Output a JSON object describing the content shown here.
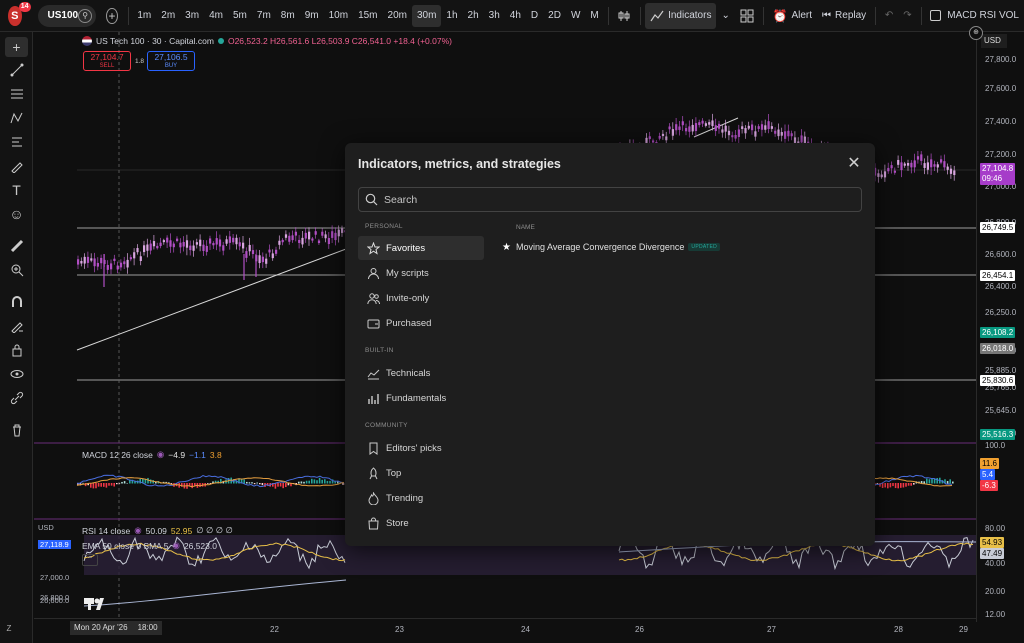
{
  "topbar": {
    "avatar_letter": "S",
    "notification_count": "14",
    "symbol": "US100",
    "intervals": [
      "1m",
      "2m",
      "3m",
      "4m",
      "5m",
      "7m",
      "8m",
      "9m",
      "10m",
      "15m",
      "20m",
      "30m",
      "1h",
      "2h",
      "3h",
      "4h",
      "D",
      "2D",
      "W",
      "M"
    ],
    "active_interval": "30m",
    "indicators_label": "Indicators",
    "alert_label": "Alert",
    "replay_label": "Replay",
    "layout_name": "MACD RSI VOL"
  },
  "legend": {
    "symbol_title": "US Tech 100 · 30 · Capital.com",
    "ohlc": "O26,523.2 H26,561.6 L26,503.9 C26,541.0 +18.4 (+0.07%)",
    "sell_price": "27,104.7",
    "sell_label": "SELL",
    "spread": "1.8",
    "buy_price": "27,106.5",
    "buy_label": "BUY",
    "macd_title": "MACD 12 26 close",
    "macd_v1": "−4.9",
    "macd_v2": "−1.1",
    "macd_v3": "3.8",
    "rsi_title": "RSI 14 close",
    "rsi_v1": "50.09",
    "rsi_v2": "52.95",
    "rsi_rest": "∅ ∅ ∅ ∅",
    "ema_title": "EMA 50 close 0 SMA 5",
    "ema_value": "26,523.0"
  },
  "price_axis": {
    "currency": "USD",
    "labels": [
      "27,800.0",
      "27,600.0",
      "27,400.0",
      "27,200.0",
      "27,000.0",
      "26,800.0",
      "26,600.0",
      "26,400.0",
      "26,250.0",
      "26,000.0",
      "25,885.0",
      "25,765.0",
      "25,645.0",
      "25,525.0"
    ],
    "last_price": "27,104.8",
    "countdown": "09:46",
    "tag_a": "26,749.5",
    "tag_b": "26,454.1",
    "tag_c": "26,108.2",
    "tag_d": "26,018.0",
    "tag_e": "25,830.6",
    "tag_f": "25,516.3",
    "macd_labels": [
      "100.0"
    ],
    "macd_tag1": "11.6",
    "macd_tag2": "5.4",
    "macd_tag3": "-6.3",
    "rsi_labels": [
      "80.00",
      "40.00",
      "20.00",
      "12.00"
    ],
    "rsi_tag1": "54.93",
    "rsi_tag2": "47.49",
    "left_currency": "USD",
    "left_tag": "27,118.9",
    "left_labels": [
      "27,000.0",
      "26,800.0",
      "26,600.0"
    ]
  },
  "time_axis": {
    "labels": [
      "22",
      "23",
      "24",
      "26",
      "27",
      "28",
      "29"
    ],
    "cursor_label": "Mon 20 Apr '26",
    "cursor_time": "18:00"
  },
  "modal": {
    "title": "Indicators, metrics, and strategies",
    "search_placeholder": "Search",
    "sections": {
      "personal": "PERSONAL",
      "builtin": "BUILT-IN",
      "community": "COMMUNITY"
    },
    "items": {
      "favorites": "Favorites",
      "my_scripts": "My scripts",
      "invite_only": "Invite-only",
      "purchased": "Purchased",
      "technicals": "Technicals",
      "fundamentals": "Fundamentals",
      "editors_picks": "Editors' picks",
      "top": "Top",
      "trending": "Trending",
      "store": "Store"
    },
    "column_header": "NAME",
    "result_name": "Moving Average Convergence Divergence",
    "result_badge": "UPDATED"
  },
  "colors": {
    "candle_up": "#d9a6e0",
    "candle_down": "#b14fc4",
    "ema_line": "#e8c048",
    "rsi_line": "#c8ccd6",
    "sell": "#f23645",
    "buy": "#2962ff",
    "last_price_tag": "#a63cc9"
  }
}
